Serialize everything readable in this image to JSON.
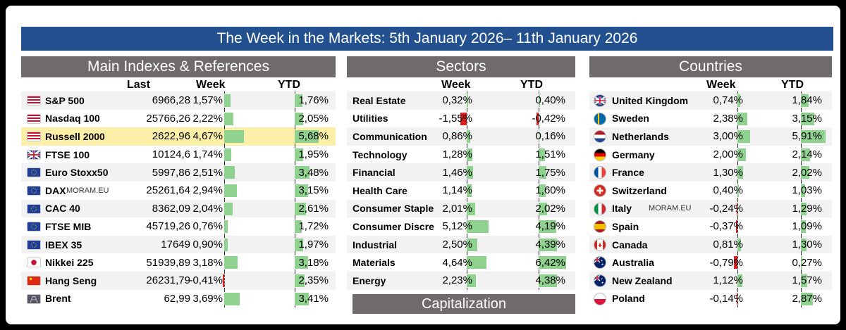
{
  "title": "The Week in the Markets: 5th January 2026– 11th January 2026",
  "watermark": "MORAM.EU",
  "colors": {
    "title_bg": "#23518f",
    "header_bg": "#6f6b6a",
    "positive_bar": "#8fd18f",
    "negative_bar": "#e02020",
    "highlight": "#fcefa8"
  },
  "indexes": {
    "header": "Main Indexes & References",
    "col_last": "Last",
    "col_week": "Week",
    "col_ytd": "YTD",
    "rows": [
      {
        "name": "S&P 500",
        "last": "6966,28",
        "week": "1,57%",
        "ytd": "1,76%",
        "flag": "us",
        "w": 1.57,
        "y": 1.76
      },
      {
        "name": "Nasdaq 100",
        "last": "25766,26",
        "week": "2,22%",
        "ytd": "2,05%",
        "flag": "us",
        "w": 2.22,
        "y": 2.05
      },
      {
        "name": "Russell 2000",
        "last": "2622,96",
        "week": "4,67%",
        "ytd": "5,68%",
        "flag": "us",
        "w": 4.67,
        "y": 5.68,
        "highlight": true
      },
      {
        "name": "FTSE 100",
        "last": "10124,6",
        "week": "1,74%",
        "ytd": "1,95%",
        "flag": "uk",
        "w": 1.74,
        "y": 1.95
      },
      {
        "name": "Euro Stoxx50",
        "last": "5997,86",
        "week": "2,51%",
        "ytd": "3,48%",
        "flag": "eu",
        "w": 2.51,
        "y": 3.48
      },
      {
        "name": "DAX",
        "last": "25261,64",
        "week": "2,94%",
        "ytd": "3,15%",
        "flag": "eu",
        "w": 2.94,
        "y": 3.15,
        "watermark": true
      },
      {
        "name": "CAC 40",
        "last": "8362,09",
        "week": "2,04%",
        "ytd": "2,61%",
        "flag": "eu",
        "w": 2.04,
        "y": 2.61
      },
      {
        "name": "FTSE MIB",
        "last": "45719,26",
        "week": "0,76%",
        "ytd": "1,72%",
        "flag": "eu",
        "w": 0.76,
        "y": 1.72
      },
      {
        "name": "IBEX 35",
        "last": "17649",
        "week": "0,90%",
        "ytd": "1,97%",
        "flag": "eu",
        "w": 0.9,
        "y": 1.97
      },
      {
        "name": "Nikkei 225",
        "last": "51939,89",
        "week": "3,18%",
        "ytd": "3,18%",
        "flag": "jp",
        "w": 3.18,
        "y": 3.18
      },
      {
        "name": "Hang Seng",
        "last": "26231,79",
        "week": "-0,41%",
        "ytd": "2,35%",
        "flag": "cn",
        "w": -0.41,
        "y": 2.35
      },
      {
        "name": "Brent",
        "last": "62,99",
        "week": "3,69%",
        "ytd": "3,41%",
        "flag": "oil",
        "w": 3.69,
        "y": 3.41
      }
    ]
  },
  "sectors": {
    "header": "Sectors",
    "col_week": "Week",
    "col_ytd": "YTD",
    "rows": [
      {
        "name": "Real Estate",
        "week": "0,32%",
        "ytd": "0,40%",
        "w": 0.32,
        "y": 0.4
      },
      {
        "name": "Utilities",
        "week": "-1,55%",
        "ytd": "-0,42%",
        "w": -1.55,
        "y": -0.42
      },
      {
        "name": "Communication",
        "week": "0,86%",
        "ytd": "0,16%",
        "w": 0.86,
        "y": 0.16
      },
      {
        "name": "Technology",
        "week": "1,28%",
        "ytd": "1,51%",
        "w": 1.28,
        "y": 1.51
      },
      {
        "name": "Financial",
        "week": "1,46%",
        "ytd": "1,75%",
        "w": 1.46,
        "y": 1.75
      },
      {
        "name": "Health Care",
        "week": "1,14%",
        "ytd": "1,60%",
        "w": 1.14,
        "y": 1.6
      },
      {
        "name": "Consumer Staple",
        "week": "2,01%",
        "ytd": "2,02%",
        "w": 2.01,
        "y": 2.02
      },
      {
        "name": "Consumer Discre",
        "week": "5,12%",
        "ytd": "4,19%",
        "w": 5.12,
        "y": 4.19
      },
      {
        "name": "Industrial",
        "week": "2,50%",
        "ytd": "4,39%",
        "w": 2.5,
        "y": 4.39
      },
      {
        "name": "Materials",
        "week": "4,64%",
        "ytd": "6,42%",
        "w": 4.64,
        "y": 6.42
      },
      {
        "name": "Energy",
        "week": "2,23%",
        "ytd": "4,38%",
        "w": 2.23,
        "y": 4.38
      }
    ],
    "capitalization_header": "Capitalization"
  },
  "countries": {
    "header": "Countries",
    "col_week": "Week",
    "col_ytd": "YTD",
    "rows": [
      {
        "name": "United Kingdom",
        "week": "0,74%",
        "ytd": "1,84%",
        "flag": "uk",
        "w": 0.74,
        "y": 1.84
      },
      {
        "name": "Sweden",
        "week": "2,38%",
        "ytd": "3,15%",
        "flag": "se",
        "w": 2.38,
        "y": 3.15
      },
      {
        "name": "Netherlands",
        "week": "3,00%",
        "ytd": "5,91%",
        "flag": "nl",
        "w": 3.0,
        "y": 5.91
      },
      {
        "name": "Germany",
        "week": "2,00%",
        "ytd": "2,14%",
        "flag": "de",
        "w": 2.0,
        "y": 2.14
      },
      {
        "name": "France",
        "week": "1,30%",
        "ytd": "2,02%",
        "flag": "fr",
        "w": 1.3,
        "y": 2.02
      },
      {
        "name": "Switzerland",
        "week": "0,40%",
        "ytd": "1,03%",
        "flag": "ch",
        "w": 0.4,
        "y": 1.03
      },
      {
        "name": "Italy",
        "week": "-0,24%",
        "ytd": "1,29%",
        "flag": "it",
        "w": -0.24,
        "y": 1.29,
        "watermark": true
      },
      {
        "name": "Spain",
        "week": "-0,37%",
        "ytd": "1,09%",
        "flag": "es",
        "w": -0.37,
        "y": 1.09
      },
      {
        "name": "Canada",
        "week": "0,81%",
        "ytd": "1,30%",
        "flag": "ca",
        "w": 0.81,
        "y": 1.3
      },
      {
        "name": "Australia",
        "week": "-0,79%",
        "ytd": "0,27%",
        "flag": "au",
        "w": -0.79,
        "y": 0.27
      },
      {
        "name": "New Zealand",
        "week": "1,12%",
        "ytd": "1,57%",
        "flag": "nz",
        "w": 1.12,
        "y": 1.57
      },
      {
        "name": "Poland",
        "week": "-0,14%",
        "ytd": "2,87%",
        "flag": "pl",
        "w": -0.14,
        "y": 2.87
      }
    ]
  }
}
